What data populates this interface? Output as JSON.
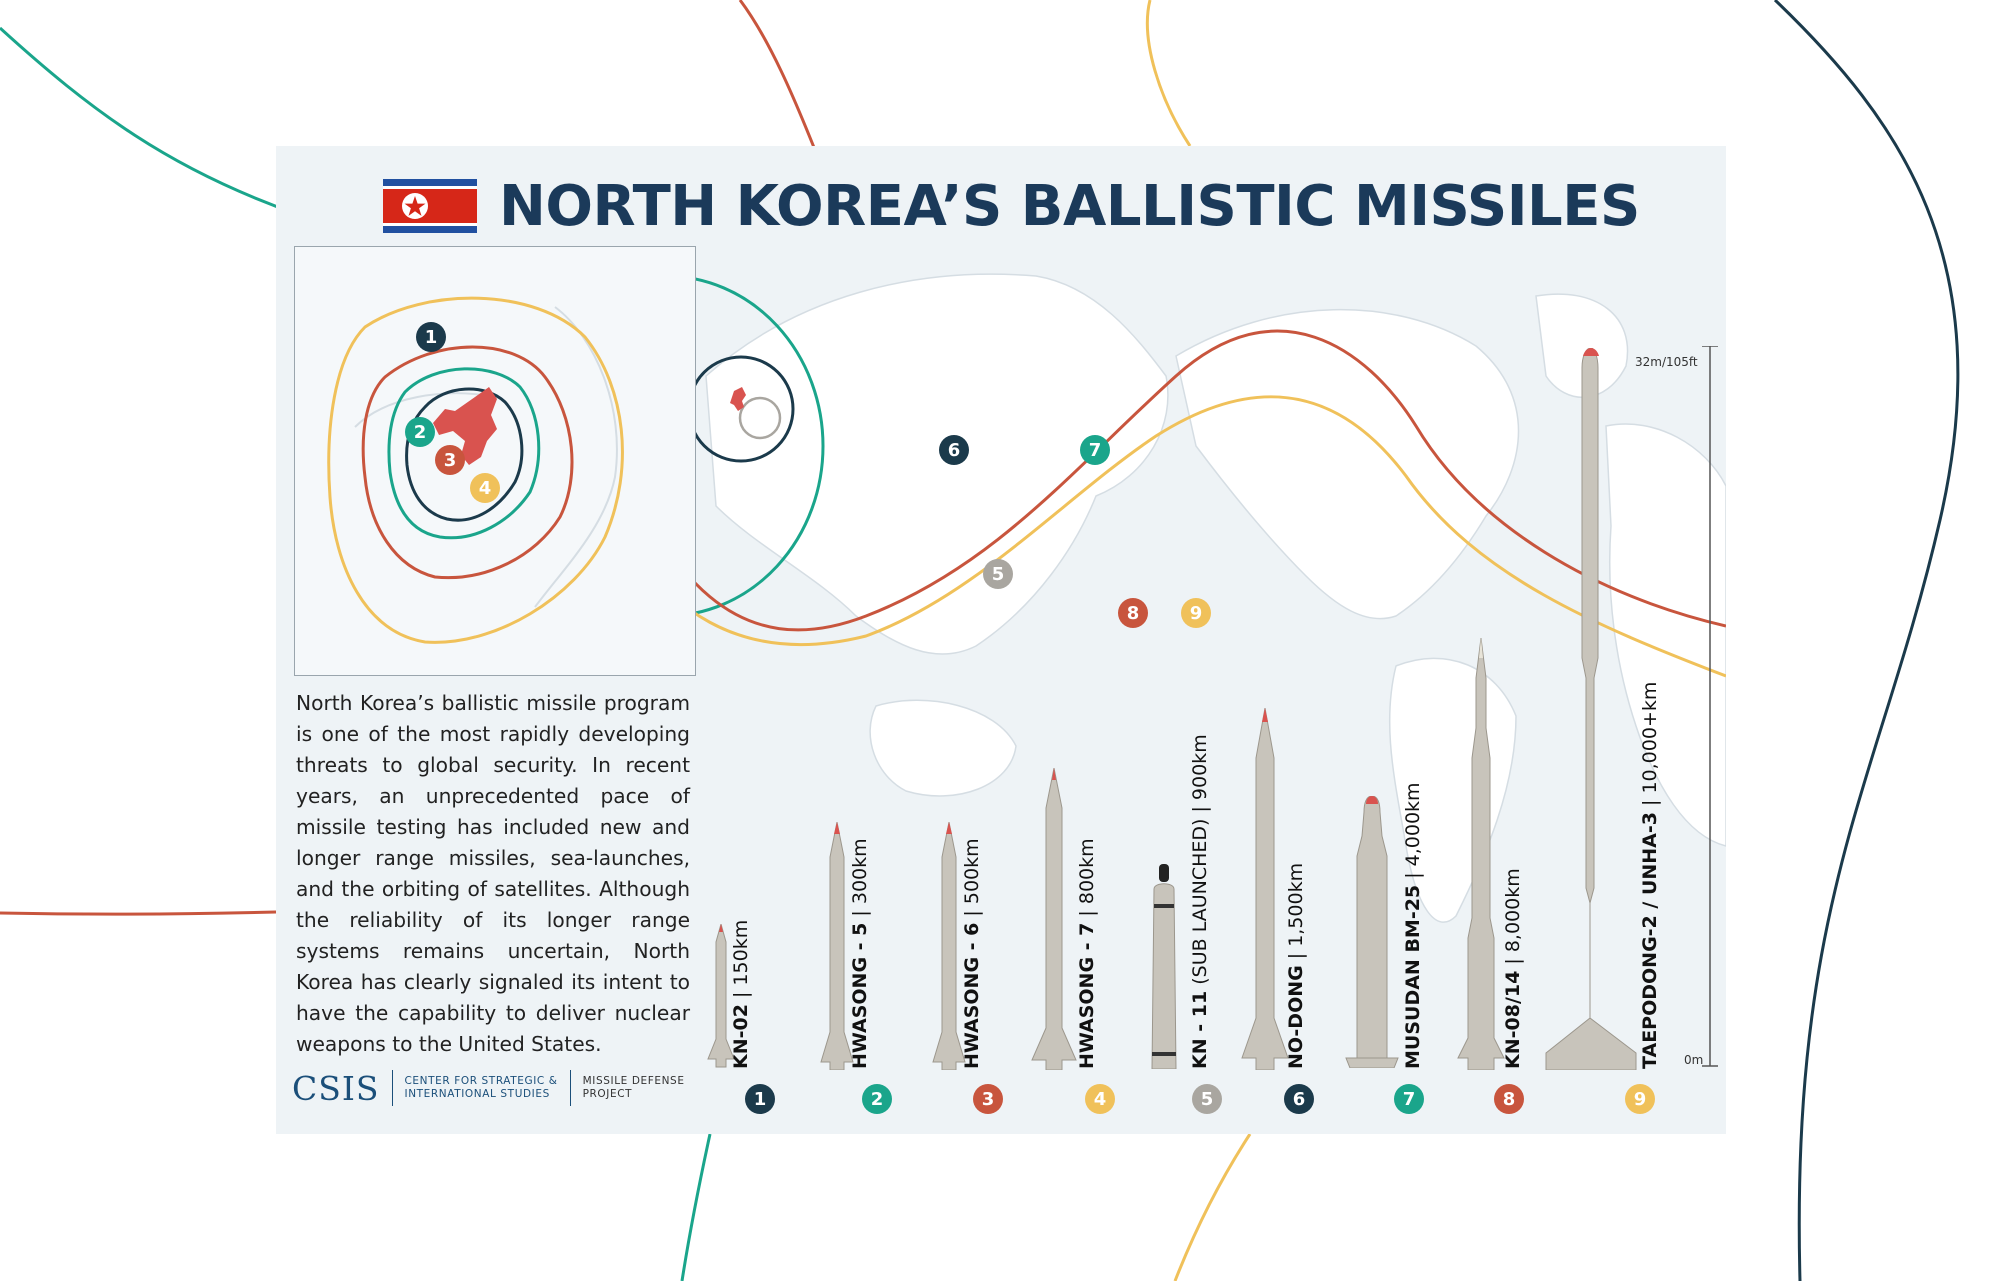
{
  "title": "NORTH KOREA’S BALLISTIC MISSILES",
  "description": "North Korea’s ballistic missile program is one of the most rapidly developing threats to global security. In recent years, an unprecedented pace of missile testing has included new and longer range missiles, sea-launches, and the orbiting of satellites. Although the reliability of its longer range systems remains uncertain, North Korea has clearly signaled its intent to have the capability to deliver nuclear weapons to the United States.",
  "logo": {
    "csis": "CSIS",
    "org_line1": "CENTER FOR STRATEGIC &",
    "org_line2": "INTERNATIONAL STUDIES",
    "project_line1": "MISSILE DEFENSE",
    "project_line2": "PROJECT"
  },
  "scale": {
    "top": "32m/105ft",
    "bottom": "0m"
  },
  "colors": {
    "navy": "#1b3a4b",
    "teal": "#1aa58b",
    "red": "#c8553d",
    "yellow": "#f0c15a",
    "grey": "#a9a6a0"
  },
  "missiles": [
    {
      "num": "1",
      "name": "KN-02",
      "range": "150km",
      "color": "#1b3a4b"
    },
    {
      "num": "2",
      "name": "HWASONG - 5",
      "range": "300km",
      "color": "#1aa58b"
    },
    {
      "num": "3",
      "name": "HWASONG - 6",
      "range": "500km",
      "color": "#c8553d"
    },
    {
      "num": "4",
      "name": "HWASONG - 7",
      "range": "800km",
      "color": "#f0c15a"
    },
    {
      "num": "5",
      "name": "KN - 11",
      "subnote": "(SUB LAUNCHED)",
      "range": "900km",
      "color": "#a9a6a0"
    },
    {
      "num": "6",
      "name": "NO-DONG",
      "range": "1,500km",
      "color": "#1b3a4b"
    },
    {
      "num": "7",
      "name": "MUSUDAN BM-25",
      "range": "4,000km",
      "color": "#1aa58b"
    },
    {
      "num": "8",
      "name": "KN-08/14",
      "range": "8,000km",
      "color": "#c8553d"
    },
    {
      "num": "9",
      "name": "TAEPODONG-2 / UNHA-3",
      "range": "10,000+km",
      "color": "#f0c15a"
    }
  ],
  "map_badges": [
    "1",
    "2",
    "3",
    "4",
    "5",
    "6",
    "7",
    "8",
    "9"
  ]
}
